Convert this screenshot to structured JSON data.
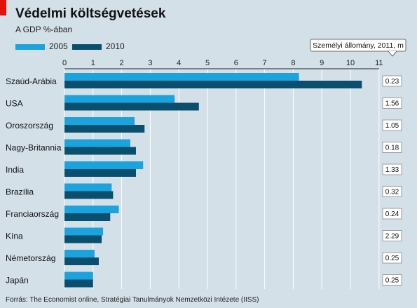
{
  "title": "Védelmi költségvetések",
  "subtitle": "A GDP %-ában",
  "source": "Forrás:  The Economist online, Stratégiai Tanulmányok Nemzetközi Intézete (IISS)",
  "colors": {
    "s2005": "#1aa3dc",
    "s2010": "#0a4f6e",
    "accent": "#e3120b"
  },
  "chart_data": {
    "type": "bar",
    "orientation": "horizontal",
    "xlim": [
      0,
      11
    ],
    "xticks": [
      "0",
      "1",
      "2",
      "3",
      "4",
      "5",
      "6",
      "7",
      "8",
      "9",
      "10",
      "11"
    ],
    "grid": true,
    "legend": "top-left",
    "categories": [
      "Szaúd-Arábia",
      "USA",
      "Oroszország",
      "Nagy-Britannia",
      "India",
      "Brazília",
      "Franciaország",
      "Kína",
      "Németország",
      "Japán"
    ],
    "series": [
      {
        "name": "2005",
        "values": [
          8.2,
          3.85,
          2.45,
          2.3,
          2.75,
          1.65,
          1.9,
          1.35,
          1.05,
          1.0
        ]
      },
      {
        "name": "2010",
        "values": [
          10.4,
          4.7,
          2.8,
          2.5,
          2.5,
          1.7,
          1.6,
          1.3,
          1.2,
          1.0
        ]
      }
    ],
    "side_panel": {
      "label": "Személyi állomány, 2011, m",
      "values": [
        "0.23",
        "1.56",
        "1.05",
        "0.18",
        "1.33",
        "0.32",
        "0.24",
        "2.29",
        "0.25",
        "0.25"
      ]
    }
  }
}
